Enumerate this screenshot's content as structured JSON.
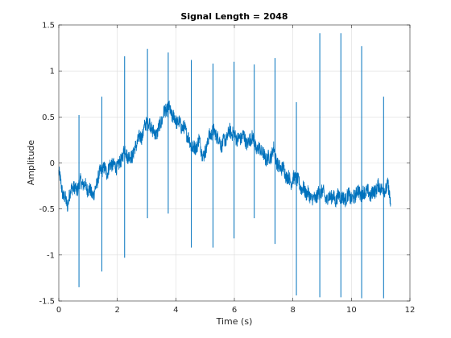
{
  "chart_data": {
    "type": "line",
    "title": "Signal Length = 2048",
    "xlabel": "Time (s)",
    "ylabel": "Amplitude",
    "xlim": [
      0,
      12
    ],
    "ylim": [
      -1.5,
      1.5
    ],
    "xticks": [
      0,
      2,
      4,
      6,
      8,
      10,
      12
    ],
    "yticks": [
      -1.5,
      -1,
      -0.5,
      0,
      0.5,
      1,
      1.5
    ],
    "grid": true,
    "line_color": "#0072BD",
    "series": [
      {
        "name": "",
        "x": [
          0.0,
          0.15,
          0.3,
          0.45,
          0.6,
          0.75,
          0.9,
          1.05,
          1.2,
          1.35,
          1.5,
          1.65,
          1.8,
          1.95,
          2.1,
          2.25,
          2.4,
          2.55,
          2.7,
          2.85,
          3.0,
          3.15,
          3.3,
          3.45,
          3.6,
          3.75,
          3.9,
          4.05,
          4.2,
          4.35,
          4.5,
          4.65,
          4.8,
          4.95,
          5.1,
          5.25,
          5.4,
          5.55,
          5.7,
          5.85,
          6.0,
          6.15,
          6.3,
          6.45,
          6.6,
          6.75,
          6.9,
          7.05,
          7.2,
          7.35,
          7.5,
          7.65,
          7.8,
          7.95,
          8.1,
          8.25,
          8.4,
          8.55,
          8.7,
          8.85,
          9.0,
          9.15,
          9.3,
          9.45,
          9.6,
          9.75,
          9.9,
          10.05,
          10.2,
          10.35,
          10.5,
          10.65,
          10.8,
          10.95,
          11.1,
          11.25,
          11.35
        ],
        "y": [
          -0.1,
          -0.35,
          -0.45,
          -0.25,
          -0.3,
          -0.2,
          -0.25,
          -0.3,
          -0.35,
          -0.15,
          -0.05,
          -0.1,
          0.0,
          -0.05,
          0.0,
          0.15,
          0.05,
          0.1,
          0.25,
          0.3,
          0.45,
          0.4,
          0.3,
          0.4,
          0.55,
          0.6,
          0.5,
          0.45,
          0.4,
          0.35,
          0.2,
          0.15,
          0.25,
          0.05,
          0.25,
          0.35,
          0.3,
          0.2,
          0.25,
          0.35,
          0.3,
          0.25,
          0.3,
          0.2,
          0.3,
          0.15,
          0.15,
          0.05,
          0.05,
          0.15,
          -0.05,
          -0.05,
          -0.15,
          -0.2,
          -0.15,
          -0.25,
          -0.3,
          -0.35,
          -0.4,
          -0.35,
          -0.3,
          -0.4,
          -0.35,
          -0.4,
          -0.35,
          -0.4,
          -0.35,
          -0.4,
          -0.3,
          -0.35,
          -0.3,
          -0.35,
          -0.3,
          -0.25,
          -0.3,
          -0.25,
          -0.45
        ]
      }
    ],
    "spikes": [
      {
        "x": 0.69,
        "ymin": -1.35,
        "ymax": 0.52
      },
      {
        "x": 1.47,
        "ymin": -1.18,
        "ymax": 0.72
      },
      {
        "x": 2.25,
        "ymin": -1.03,
        "ymax": 1.16
      },
      {
        "x": 3.03,
        "ymin": -0.6,
        "ymax": 1.24
      },
      {
        "x": 3.74,
        "ymin": -0.55,
        "ymax": 1.2
      },
      {
        "x": 4.53,
        "ymin": -0.92,
        "ymax": 1.12
      },
      {
        "x": 5.27,
        "ymin": -0.92,
        "ymax": 1.08
      },
      {
        "x": 5.99,
        "ymin": -0.82,
        "ymax": 1.1
      },
      {
        "x": 6.68,
        "ymin": -0.6,
        "ymax": 1.07
      },
      {
        "x": 7.39,
        "ymin": -0.88,
        "ymax": 1.14
      },
      {
        "x": 8.12,
        "ymin": -1.44,
        "ymax": 0.66
      },
      {
        "x": 8.92,
        "ymin": -1.46,
        "ymax": 1.41
      },
      {
        "x": 9.64,
        "ymin": -1.46,
        "ymax": 1.41
      },
      {
        "x": 10.35,
        "ymin": -1.47,
        "ymax": 1.27
      },
      {
        "x": 11.1,
        "ymin": -1.47,
        "ymax": 0.72
      }
    ]
  }
}
